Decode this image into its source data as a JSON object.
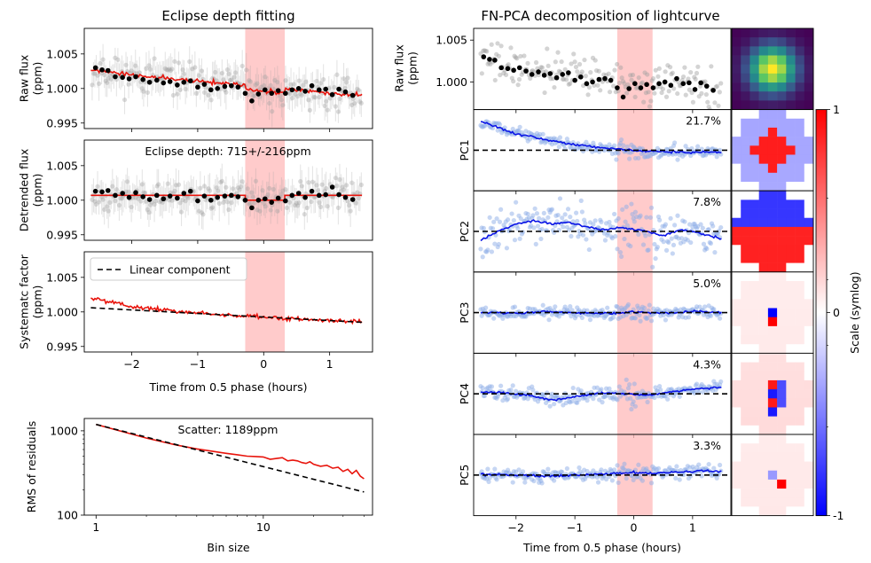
{
  "colors": {
    "raw_points": "#a0a0a0",
    "binned_points": "#000000",
    "model": "#e8140c",
    "eclipse_band": "#ffbcbc",
    "pc_points": "#8eaee8",
    "pc_line": "#0a14e6",
    "baseline": "#000000",
    "linear_component": "#000000"
  },
  "chart_data": [
    {
      "id": "raw-flux",
      "type": "scatter",
      "title": "Eclipse depth fitting",
      "ylabel": [
        "Raw flux",
        "(ppm)"
      ],
      "xlim": [
        -2.72,
        1.65
      ],
      "ylim": [
        0.9942,
        1.0087
      ],
      "yticks": [
        0.995,
        1.0,
        1.005
      ],
      "ytick_labels": [
        "0.995",
        "1.000",
        "1.005"
      ],
      "xticks": [
        -2,
        -1,
        0,
        1
      ],
      "eclipse_window": [
        -0.28,
        0.32
      ],
      "binned_x": [
        -2.55,
        -2.45,
        -2.36,
        -2.25,
        -2.14,
        -2.04,
        -1.94,
        -1.83,
        -1.73,
        -1.62,
        -1.52,
        -1.42,
        -1.31,
        -1.21,
        -1.11,
        -1.0,
        -0.9,
        -0.8,
        -0.7,
        -0.59,
        -0.49,
        -0.39,
        -0.28,
        -0.18,
        -0.08,
        0.02,
        0.12,
        0.22,
        0.33,
        0.43,
        0.53,
        0.63,
        0.73,
        0.84,
        0.94,
        1.04,
        1.14,
        1.24,
        1.35
      ],
      "binned_y": [
        1.003,
        1.0027,
        1.0026,
        1.0017,
        1.0016,
        1.0014,
        1.0017,
        1.0013,
        1.0009,
        1.0012,
        1.0008,
        1.001,
        1.0005,
        1.0009,
        1.0011,
        1.0002,
        1.0006,
        0.9998,
        1.0,
        1.0003,
        1.0004,
        1.0002,
        0.9993,
        0.9982,
        0.9992,
        0.9998,
        0.9993,
        0.9997,
        0.9993,
        0.9998,
        1.0,
        0.9996,
        1.0004,
        0.9998,
        0.9999,
        0.9991,
        0.9999,
        0.9995,
        0.999
      ],
      "model_trend": [
        [
          -2.62,
          1.0025
        ],
        [
          -2.2,
          1.0015
        ],
        [
          -1.6,
          1.0008
        ],
        [
          -1.0,
          1.0003
        ],
        [
          -0.5,
          1.0
        ],
        [
          -0.28,
          0.9998
        ],
        [
          -0.28,
          0.9991
        ],
        [
          0.32,
          0.9991
        ],
        [
          0.32,
          0.9996
        ],
        [
          0.8,
          0.9994
        ],
        [
          1.49,
          0.9991
        ]
      ]
    },
    {
      "id": "detrended-flux",
      "type": "scatter",
      "annotation": "Eclipse depth: 715+/-216ppm",
      "ylabel": [
        "Detrended flux",
        "(ppm)"
      ],
      "xlim": [
        -2.72,
        1.65
      ],
      "ylim": [
        0.9942,
        1.0087
      ],
      "yticks": [
        0.995,
        1.0,
        1.005
      ],
      "ytick_labels": [
        "0.995",
        "1.000",
        "1.005"
      ],
      "eclipse_window": [
        -0.28,
        0.32
      ],
      "binned_x": [
        -2.55,
        -2.45,
        -2.36,
        -2.25,
        -2.14,
        -2.04,
        -1.94,
        -1.83,
        -1.73,
        -1.62,
        -1.52,
        -1.42,
        -1.31,
        -1.21,
        -1.11,
        -1.0,
        -0.9,
        -0.8,
        -0.7,
        -0.59,
        -0.49,
        -0.39,
        -0.28,
        -0.18,
        -0.08,
        0.02,
        0.12,
        0.22,
        0.33,
        0.43,
        0.53,
        0.63,
        0.73,
        0.84,
        0.94,
        1.04,
        1.14,
        1.24,
        1.35
      ],
      "binned_y": [
        1.0013,
        1.0012,
        1.0014,
        1.0007,
        1.001,
        1.0004,
        1.0011,
        1.0005,
        1.0001,
        1.0007,
        1.0002,
        1.0006,
        1.0003,
        1.001,
        1.0013,
        0.9999,
        1.0006,
        1.0,
        1.0004,
        1.0006,
        1.0007,
        1.0005,
        1.0,
        0.9989,
        1.0,
        1.0002,
        0.9997,
        1.0003,
        0.9999,
        1.0007,
        1.001,
        1.0004,
        1.0013,
        1.0007,
        1.0008,
        1.0019,
        1.0008,
        1.0004,
        1.0001
      ],
      "model_trend": [
        [
          -2.62,
          1.0007
        ],
        [
          -0.28,
          1.0007
        ],
        [
          -0.28,
          1.0
        ],
        [
          0.32,
          1.0
        ],
        [
          0.32,
          1.0007
        ],
        [
          1.49,
          1.0007
        ]
      ]
    },
    {
      "id": "systematic-factor",
      "type": "line",
      "ylabel": [
        "Systematc factor",
        "(ppm)"
      ],
      "xlabel": "Time from 0.5 phase (hours)",
      "xlim": [
        -2.72,
        1.65
      ],
      "ylim": [
        0.9942,
        1.0087
      ],
      "yticks": [
        0.995,
        1.0,
        1.005
      ],
      "ytick_labels": [
        "0.995",
        "1.000",
        "1.005"
      ],
      "xticks": [
        -2,
        -1,
        0,
        1
      ],
      "xtick_labels": [
        "−2",
        "−1",
        "0",
        "1"
      ],
      "eclipse_window": [
        -0.28,
        0.32
      ],
      "legend": {
        "label": "Linear component",
        "placement": "top-left"
      },
      "linear_component": [
        [
          -2.62,
          1.0006
        ],
        [
          1.49,
          0.9985
        ]
      ],
      "systematic_trend": [
        [
          -2.62,
          1.002
        ],
        [
          -2.3,
          1.0015
        ],
        [
          -2.0,
          1.0008
        ],
        [
          -1.5,
          1.0003
        ],
        [
          -1.0,
          0.9998
        ],
        [
          -0.5,
          0.9995
        ],
        [
          0,
          0.9992
        ],
        [
          0.5,
          0.999
        ],
        [
          1.0,
          0.9988
        ],
        [
          1.49,
          0.9986
        ]
      ]
    },
    {
      "id": "rms-residuals",
      "type": "line",
      "annotation": "Scatter: 1189ppm",
      "ylabel": "RMS of residuals",
      "xlabel": "Bin size",
      "xscale": "log",
      "yscale": "log",
      "xlim": [
        0.85,
        45
      ],
      "ylim": [
        100,
        1400
      ],
      "xticks": [
        1,
        10
      ],
      "xtick_labels": [
        "1",
        "10"
      ],
      "yticks": [
        100,
        1000
      ],
      "ytick_labels": [
        "100",
        "1000"
      ],
      "reference_line": [
        [
          1,
          1189
        ],
        [
          40,
          188
        ]
      ],
      "measured": {
        "x": [
          1,
          2,
          3,
          4,
          5,
          6,
          7,
          8,
          9,
          10,
          11,
          12,
          13,
          14,
          15,
          16,
          17,
          18,
          19,
          20,
          22,
          24,
          26,
          28,
          30,
          32,
          34,
          36,
          38,
          40
        ],
        "y": [
          1189,
          820,
          680,
          610,
          570,
          540,
          520,
          500,
          495,
          490,
          460,
          470,
          480,
          440,
          450,
          440,
          420,
          410,
          430,
          400,
          380,
          390,
          360,
          370,
          330,
          350,
          310,
          340,
          290,
          270
        ]
      }
    },
    {
      "id": "pca-raw-flux",
      "type": "scatter",
      "title": "FN-PCA decomposition of lightcurve",
      "ylabel": [
        "Raw flux",
        "(ppm)"
      ],
      "xlim": [
        -2.72,
        1.65
      ],
      "ylim": [
        0.9967,
        1.0064
      ],
      "yticks": [
        1.0,
        1.005
      ],
      "ytick_labels": [
        "1.000",
        "1.005"
      ],
      "eclipse_window": [
        -0.28,
        0.32
      ],
      "binned_x": [
        -2.55,
        -2.45,
        -2.36,
        -2.25,
        -2.14,
        -2.04,
        -1.94,
        -1.83,
        -1.73,
        -1.62,
        -1.52,
        -1.42,
        -1.31,
        -1.21,
        -1.11,
        -1.0,
        -0.9,
        -0.8,
        -0.7,
        -0.59,
        -0.49,
        -0.39,
        -0.28,
        -0.18,
        -0.08,
        0.02,
        0.12,
        0.22,
        0.33,
        0.43,
        0.53,
        0.63,
        0.73,
        0.84,
        0.94,
        1.04,
        1.14,
        1.24,
        1.35
      ],
      "binned_y": [
        1.003,
        1.0027,
        1.0026,
        1.0017,
        1.0016,
        1.0014,
        1.0017,
        1.0013,
        1.0009,
        1.0012,
        1.0008,
        1.001,
        1.0005,
        1.0009,
        1.0011,
        1.0002,
        1.0006,
        0.9998,
        1.0,
        1.0003,
        1.0004,
        1.0002,
        0.9993,
        0.9982,
        0.9992,
        0.9998,
        0.9993,
        0.9997,
        0.9993,
        0.9998,
        1.0,
        0.9996,
        1.0004,
        0.9998,
        0.9999,
        0.9991,
        0.9999,
        0.9995,
        0.999
      ]
    },
    {
      "id": "principal-components",
      "type": "line",
      "xlabel": "Time from 0.5 phase (hours)",
      "xlim": [
        -2.72,
        1.65
      ],
      "xticks": [
        -2,
        -1,
        0,
        1
      ],
      "xtick_labels": [
        "−2",
        "−1",
        "0",
        "1"
      ],
      "eclipse_window": [
        -0.28,
        0.32
      ],
      "components": [
        {
          "name": "PC1",
          "variance": "21.7%",
          "amp": 1.0,
          "noise": 0.14,
          "trend": [
            [
              -2.6,
              0.95
            ],
            [
              -2.3,
              0.75
            ],
            [
              -2.0,
              0.55
            ],
            [
              -1.5,
              0.35
            ],
            [
              -1.0,
              0.18
            ],
            [
              -0.5,
              0.08
            ],
            [
              0,
              -0.02
            ],
            [
              0.5,
              -0.05
            ],
            [
              1.0,
              -0.08
            ],
            [
              1.49,
              -0.06
            ]
          ]
        },
        {
          "name": "PC2",
          "variance": "7.8%",
          "amp": 1.0,
          "noise": 0.45,
          "trend": [
            [
              -2.6,
              -0.3
            ],
            [
              -2.3,
              0.0
            ],
            [
              -2.0,
              0.25
            ],
            [
              -1.7,
              0.35
            ],
            [
              -1.4,
              0.25
            ],
            [
              -1.1,
              0.3
            ],
            [
              -0.8,
              0.15
            ],
            [
              -0.5,
              0.05
            ],
            [
              -0.2,
              0.12
            ],
            [
              0.1,
              0.05
            ],
            [
              0.5,
              -0.15
            ],
            [
              0.8,
              0.05
            ],
            [
              1.1,
              -0.05
            ],
            [
              1.49,
              -0.25
            ]
          ]
        },
        {
          "name": "PC3",
          "variance": "5.0%",
          "amp": 1.0,
          "noise": 0.13,
          "trend": [
            [
              -2.6,
              0.0
            ],
            [
              -2.0,
              -0.02
            ],
            [
              -1.5,
              0.03
            ],
            [
              -1.0,
              0.0
            ],
            [
              -0.5,
              -0.03
            ],
            [
              0,
              0.02
            ],
            [
              0.5,
              -0.02
            ],
            [
              1.0,
              0.04
            ],
            [
              1.49,
              0.0
            ]
          ]
        },
        {
          "name": "PC4",
          "variance": "4.3%",
          "amp": 1.0,
          "noise": 0.16,
          "trend": [
            [
              -2.6,
              0.08
            ],
            [
              -2.2,
              0.02
            ],
            [
              -1.8,
              -0.04
            ],
            [
              -1.4,
              -0.2
            ],
            [
              -1.0,
              -0.1
            ],
            [
              -0.6,
              0.02
            ],
            [
              -0.2,
              0.0
            ],
            [
              0.2,
              -0.05
            ],
            [
              0.6,
              0.05
            ],
            [
              1.0,
              0.15
            ],
            [
              1.49,
              0.22
            ]
          ]
        },
        {
          "name": "PC5",
          "variance": "3.3%",
          "amp": 1.0,
          "noise": 0.15,
          "trend": [
            [
              -2.6,
              0.02
            ],
            [
              -2.0,
              0.0
            ],
            [
              -1.5,
              -0.03
            ],
            [
              -1.0,
              0.0
            ],
            [
              -0.5,
              0.03
            ],
            [
              0,
              0.08
            ],
            [
              0.3,
              0.05
            ],
            [
              0.7,
              0.1
            ],
            [
              1.1,
              0.14
            ],
            [
              1.49,
              0.12
            ]
          ]
        }
      ]
    },
    {
      "id": "pixel-maps",
      "type": "heatmap",
      "grid": 9,
      "mean_image_cmap": "viridis",
      "colorbar": {
        "label": "Scale (symlog)",
        "ticks": [
          "1",
          "0",
          "-1"
        ]
      }
    }
  ]
}
